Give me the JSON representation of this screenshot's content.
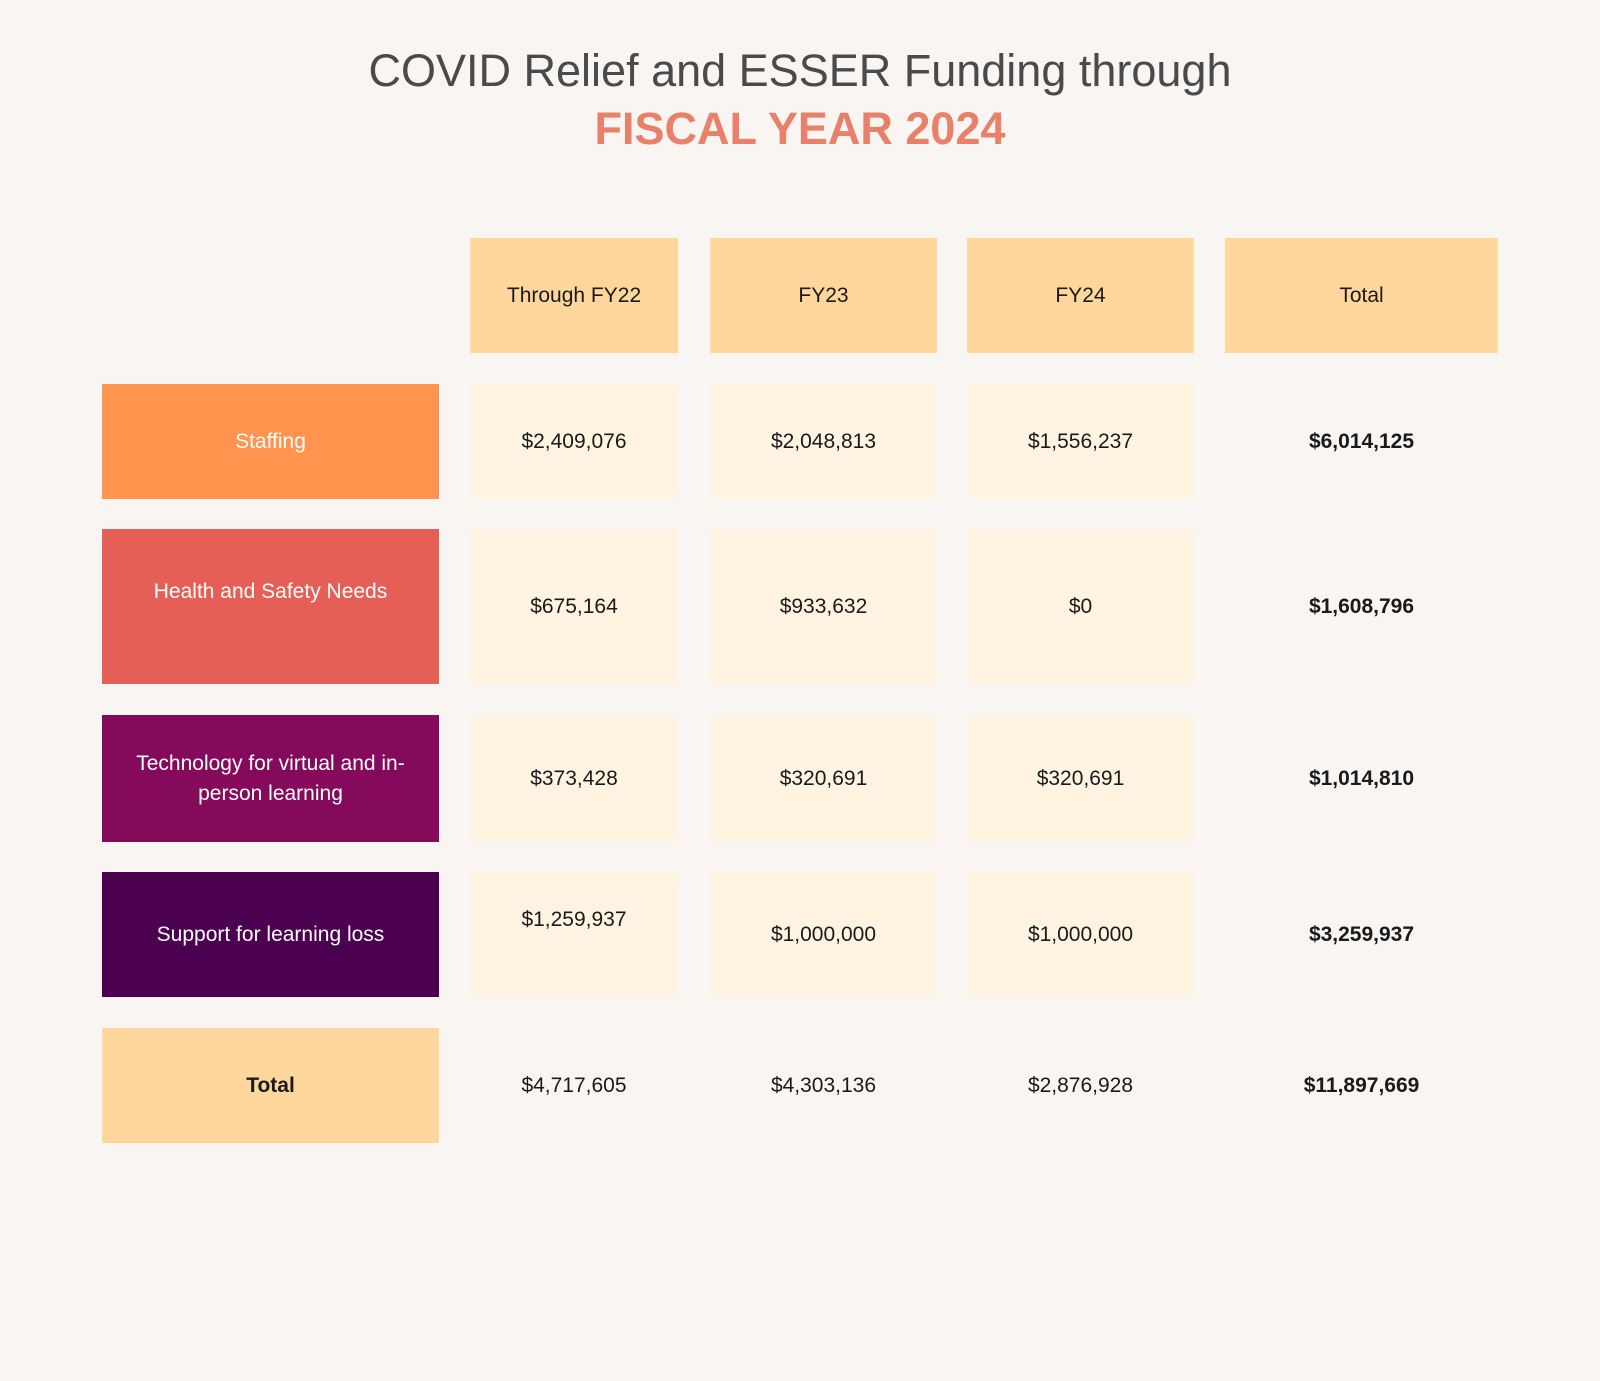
{
  "chart_data": {
    "type": "table",
    "title": "COVID Relief and ESSER Funding through",
    "subtitle": "FISCAL YEAR 2024",
    "columns": [
      "Through FY22",
      "FY23",
      "FY24",
      "Total"
    ],
    "rows": [
      {
        "label": "Staffing",
        "color": "#FF944F",
        "values": [
          "$2,409,076",
          "$2,048,813",
          "$1,556,237",
          "$6,014,125"
        ]
      },
      {
        "label": "Health and Safety Needs",
        "color": "#E65F57",
        "values": [
          "$675,164",
          "$933,632",
          "$0",
          "$1,608,796"
        ]
      },
      {
        "label": "Technology for virtual and in-person learning",
        "color": "#850A5B",
        "values": [
          "$373,428",
          "$320,691",
          "$320,691",
          "$1,014,810"
        ]
      },
      {
        "label": "Support for learning loss",
        "color": "#4B0050",
        "values": [
          "$1,259,937",
          "$1,000,000",
          "$1,000,000",
          "$3,259,937"
        ]
      }
    ],
    "total_row": {
      "label": "Total",
      "values": [
        "$4,717,605",
        "$4,303,136",
        "$2,876,928",
        "$11,897,669"
      ]
    },
    "colors": {
      "header": "#FFD79C",
      "cell": "#FFF3E2",
      "background": "#F9F5F2",
      "subtitle": "#E8806A"
    }
  }
}
